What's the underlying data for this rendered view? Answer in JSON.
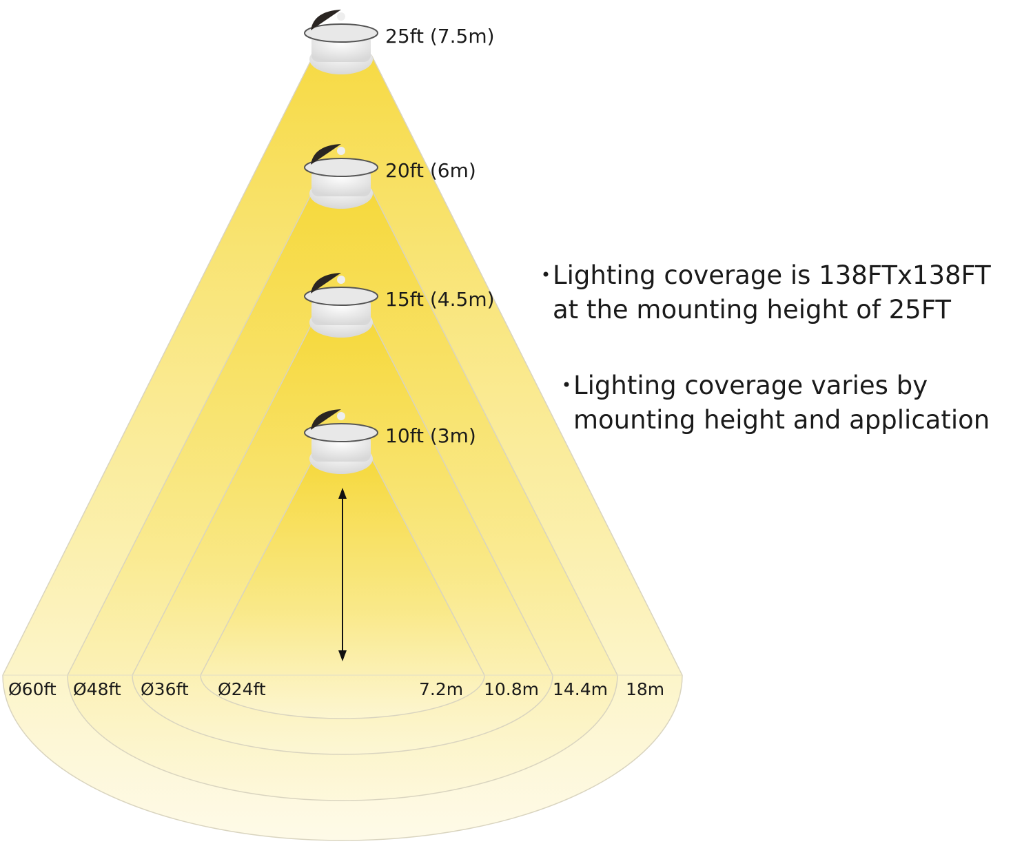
{
  "lamps": [
    {
      "height_label": "25ft (7.5m)"
    },
    {
      "height_label": "20ft (6m)"
    },
    {
      "height_label": "15ft (4.5m)"
    },
    {
      "height_label": "10ft (3m)"
    }
  ],
  "diameters": [
    "Ø60ft",
    "Ø48ft",
    "Ø36ft",
    "Ø24ft"
  ],
  "metric_widths": [
    "7.2m",
    "10.8m",
    "14.4m",
    "18m"
  ],
  "notes": [
    {
      "lines": [
        "Lighting coverage is 138FTx138FT",
        "at the mounting height of 25FT"
      ]
    },
    {
      "lines": [
        "Lighting coverage varies by",
        "mounting height and application"
      ]
    }
  ]
}
